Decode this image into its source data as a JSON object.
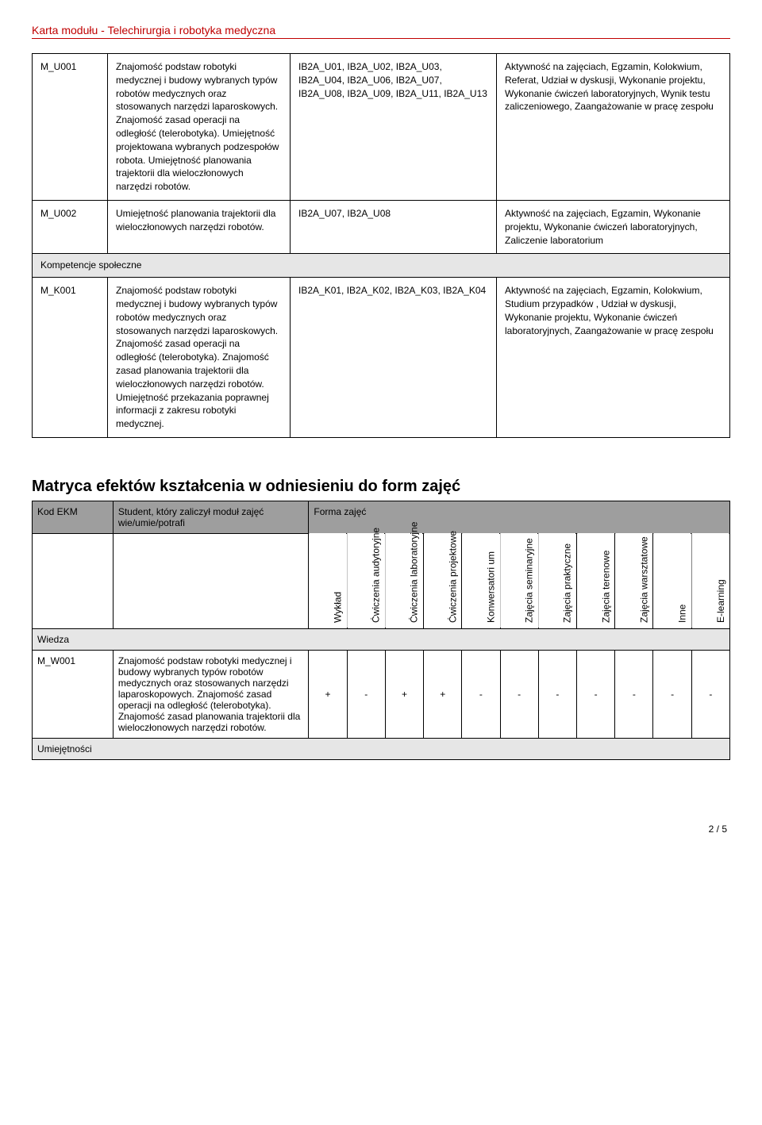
{
  "header": {
    "title": "Karta modułu - Telechirurgia i robotyka medyczna"
  },
  "rows": {
    "u001": {
      "code": "M_U001",
      "desc": "Znajomość podstaw robotyki medycznej i budowy wybranych typów robotów medycznych oraz stosowanych narzędzi laparoskowych. Znajomość zasad operacji na odległość (telerobotyka). Umiejętność projektowana wybranych podzespołów robota. Umiejętność planowania trajektorii dla wieloczłonowych narzędzi robotów.",
      "refs": "IB2A_U01, IB2A_U02, IB2A_U03, IB2A_U04, IB2A_U06, IB2A_U07, IB2A_U08, IB2A_U09, IB2A_U11, IB2A_U13",
      "act": "Aktywność na zajęciach, Egzamin, Kolokwium, Referat, Udział w dyskusji, Wykonanie projektu, Wykonanie ćwiczeń laboratoryjnych, Wynik testu zaliczeniowego, Zaangażowanie w pracę zespołu"
    },
    "u002": {
      "code": "M_U002",
      "desc": "Umiejętność planowania trajektorii dla wieloczłonowych narzędzi robotów.",
      "refs": "IB2A_U07, IB2A_U08",
      "act": "Aktywność na zajęciach, Egzamin, Wykonanie projektu, Wykonanie ćwiczeń laboratoryjnych, Zaliczenie laboratorium"
    },
    "kompSection": "Kompetencje społeczne",
    "k001": {
      "code": "M_K001",
      "desc": "Znajomość podstaw robotyki medycznej i budowy wybranych typów robotów medycznych oraz stosowanych narzędzi laparoskowych. Znajomość zasad operacji na odległość (telerobotyka). Znajomość zasad planowania trajektorii dla wieloczłonowych narzędzi robotów. Umiejętność przekazania poprawnej informacji z zakresu robotyki medycznej.",
      "refs": "IB2A_K01, IB2A_K02, IB2A_K03, IB2A_K04",
      "act": "Aktywność na zajęciach, Egzamin, Kolokwium, Studium przypadków , Udział w dyskusji, Wykonanie projektu, Wykonanie ćwiczeń laboratoryjnych, Zaangażowanie w pracę zespołu"
    }
  },
  "matrix": {
    "title": "Matryca efektów kształcenia w odniesieniu do form zajęć",
    "headers": {
      "kod": "Kod EKM",
      "student": "Student, który zaliczył moduł zajęć wie/umie/potrafi",
      "forma": "Forma zajęć"
    },
    "cols": {
      "c1": "Wykład",
      "c2": "Ćwiczenia audytoryjne",
      "c3": "Ćwiczenia laboratoryjne",
      "c4": "Ćwiczenia projektowe",
      "c5": "Konwersatori um",
      "c6": "Zajęcia seminaryjne",
      "c7": "Zajęcia praktyczne",
      "c8": "Zajęcia terenowe",
      "c9": "Zajęcia warsztatowe",
      "c10": "Inne",
      "c11": "E-learning"
    },
    "wiedza": "Wiedza",
    "w001": {
      "code": "M_W001",
      "desc": "Znajomość podstaw robotyki medycznej i budowy wybranych typów robotów medycznych oraz stosowanych narzędzi laparoskopowych. Znajomość zasad operacji na odległość (telerobotyka). Znajomość zasad planowania trajektorii dla wieloczłonowych narzędzi robotów.",
      "v1": "+",
      "v2": "-",
      "v3": "+",
      "v4": "+",
      "v5": "-",
      "v6": "-",
      "v7": "-",
      "v8": "-",
      "v9": "-",
      "v10": "-",
      "v11": "-"
    },
    "umiej": "Umiejętności"
  },
  "footer": {
    "page": "2 / 5"
  }
}
